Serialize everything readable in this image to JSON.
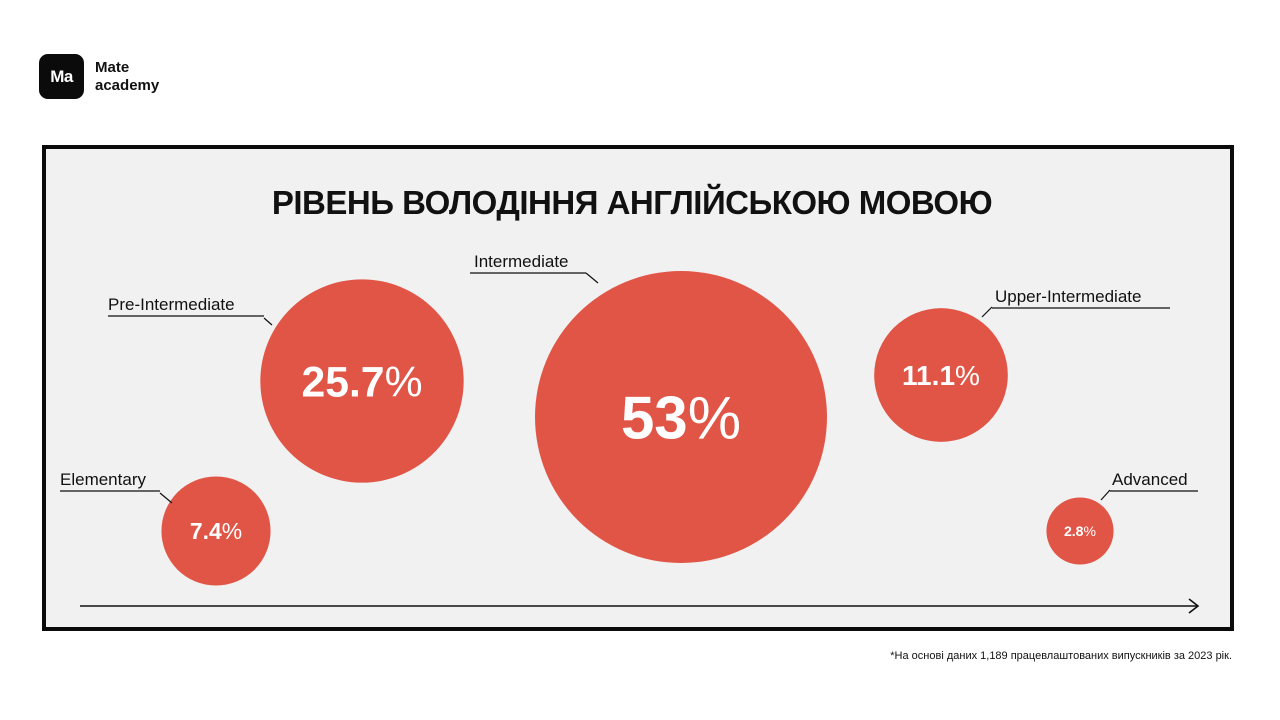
{
  "brand": {
    "logo_mark": "Ma",
    "name_line1": "Mate",
    "name_line2": "academy"
  },
  "chart_data": {
    "type": "bubble",
    "title": "РІВЕНЬ ВОЛОДІННЯ АНГЛІЙСЬКОЮ МОВОЮ",
    "categories": [
      "Elementary",
      "Pre-Intermediate",
      "Intermediate",
      "Upper-Intermediate",
      "Advanced"
    ],
    "values": [
      7.4,
      25.7,
      53,
      11.1,
      2.8
    ],
    "value_labels": [
      "7.4",
      "25.7",
      "53",
      "11.1",
      "2.8"
    ],
    "unit": "%",
    "bubble_color": "#e15547",
    "value_text_color": "#ffffff"
  },
  "footnote": "*На основі даних 1,189 працевлаштованих випускників за 2023 рік."
}
